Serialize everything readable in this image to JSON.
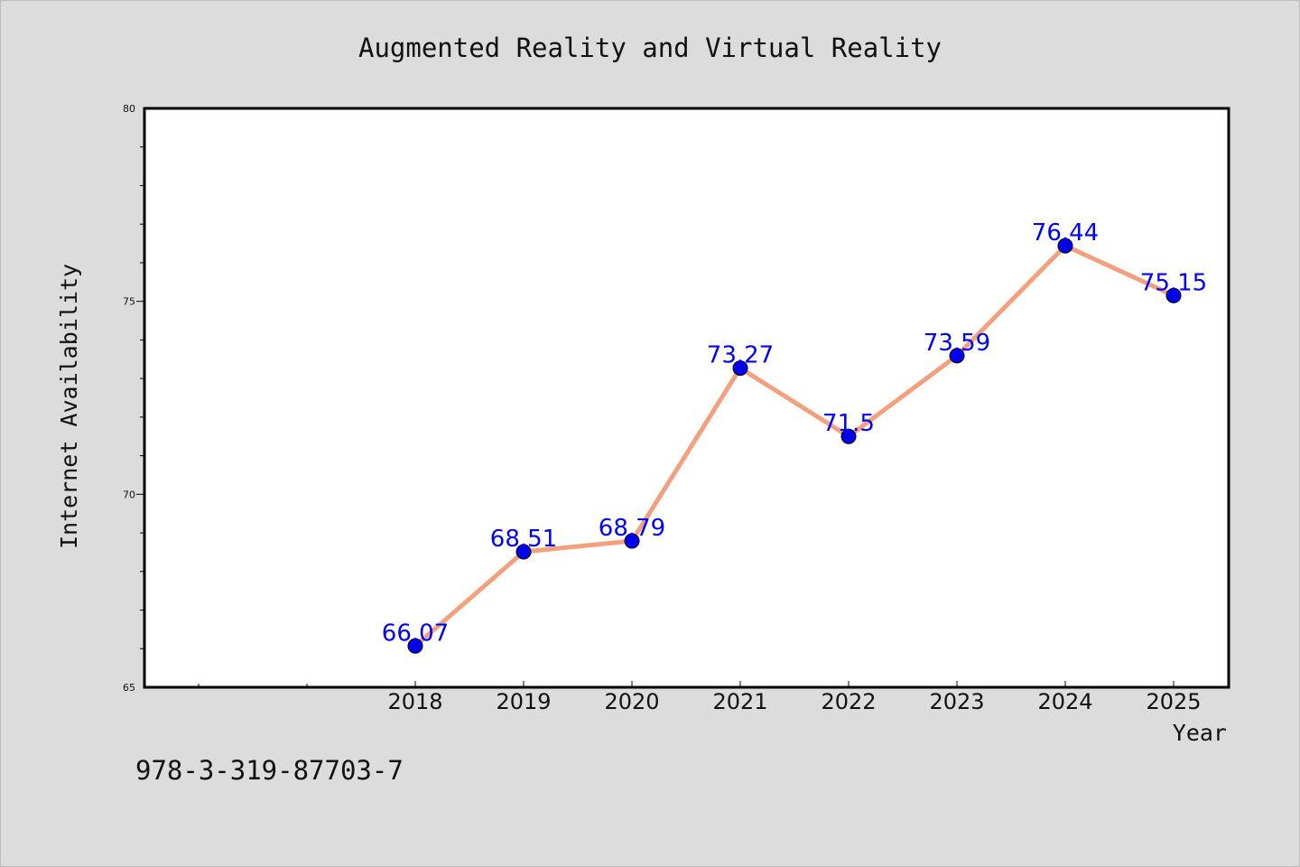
{
  "chart_data": {
    "type": "line",
    "title": "Augmented Reality and Virtual Reality",
    "xlabel": "Year",
    "ylabel": "Internet Availability",
    "categories": [
      "2018",
      "2019",
      "2020",
      "2021",
      "2022",
      "2023",
      "2024",
      "2025"
    ],
    "series": [
      {
        "values": [
          66.07,
          68.51,
          68.79,
          73.27,
          71.5,
          73.59,
          76.44,
          75.15
        ],
        "data_labels": [
          "66.07",
          "68.51",
          "68.79",
          "73.27",
          "71.5",
          "73.59",
          "76.44",
          "75.15"
        ],
        "line_color": "#f4a07e",
        "marker_color": "#0000ee"
      }
    ],
    "ylim": [
      65,
      80
    ],
    "yticks": [
      "65",
      "70",
      "75",
      "80"
    ],
    "grid": false,
    "legend": "none",
    "label_color": "#0000ff",
    "background_color": "#dcdcdc",
    "plot_background_color": "#ffffff"
  },
  "footer": {
    "isbn": "978-3-319-87703-7"
  }
}
